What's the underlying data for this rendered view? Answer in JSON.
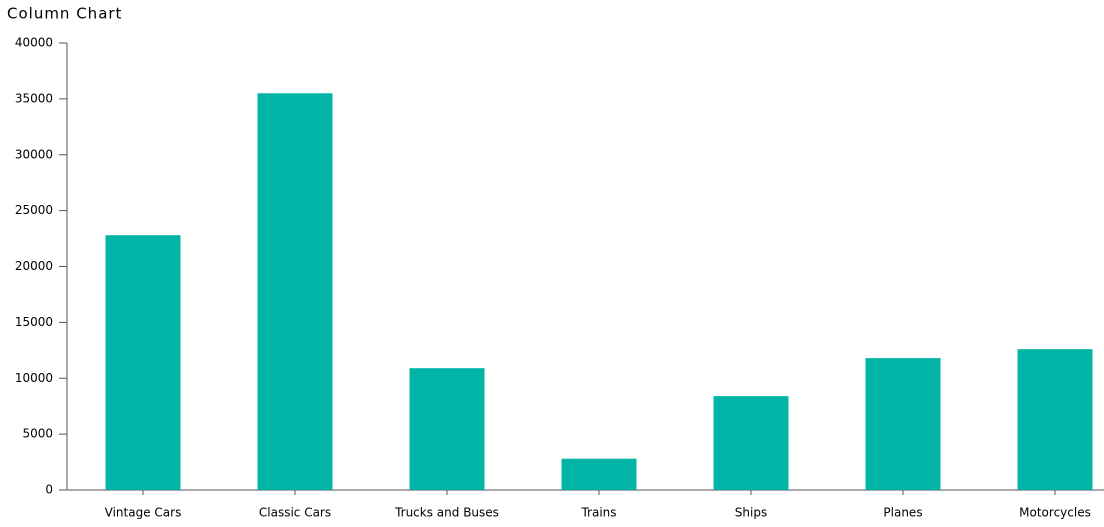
{
  "chart_data": {
    "type": "bar",
    "title": "Column Chart",
    "categories": [
      "Vintage Cars",
      "Classic Cars",
      "Trucks and Buses",
      "Trains",
      "Ships",
      "Planes",
      "Motorcycles"
    ],
    "values": [
      22800,
      35500,
      10900,
      2800,
      8400,
      11800,
      12600
    ],
    "color": "#00b5a6",
    "ylim": [
      0,
      40000
    ],
    "yticks": [
      0,
      5000,
      10000,
      15000,
      20000,
      25000,
      30000,
      35000,
      40000
    ],
    "grid": false
  }
}
